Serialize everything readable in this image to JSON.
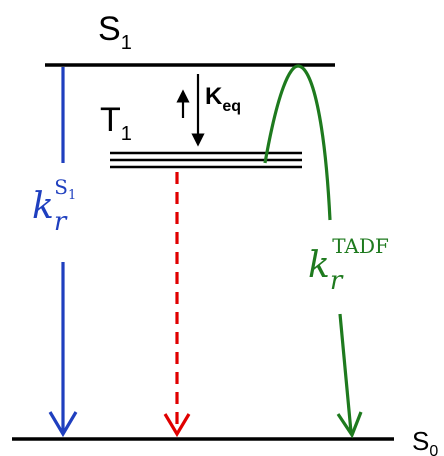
{
  "diagram": {
    "levels": {
      "s1": {
        "label": "S",
        "sub": "1"
      },
      "t1": {
        "label": "T",
        "sub": "1"
      },
      "s0": {
        "label": "S",
        "sub": "0"
      }
    },
    "keq": {
      "base": "K",
      "sub": "eq"
    },
    "rates": {
      "fluorescence": {
        "base": "k",
        "sub": "r",
        "sup_base": "S",
        "sup_sub": "1"
      },
      "tadf": {
        "base": "k",
        "sub": "r",
        "sup": "TADF"
      }
    },
    "colors": {
      "levels": "#000000",
      "fluorescence": "#1f3fbf",
      "tadf": "#1e7a1e",
      "nonradiative": "#e00000",
      "keq": "#000000"
    }
  }
}
